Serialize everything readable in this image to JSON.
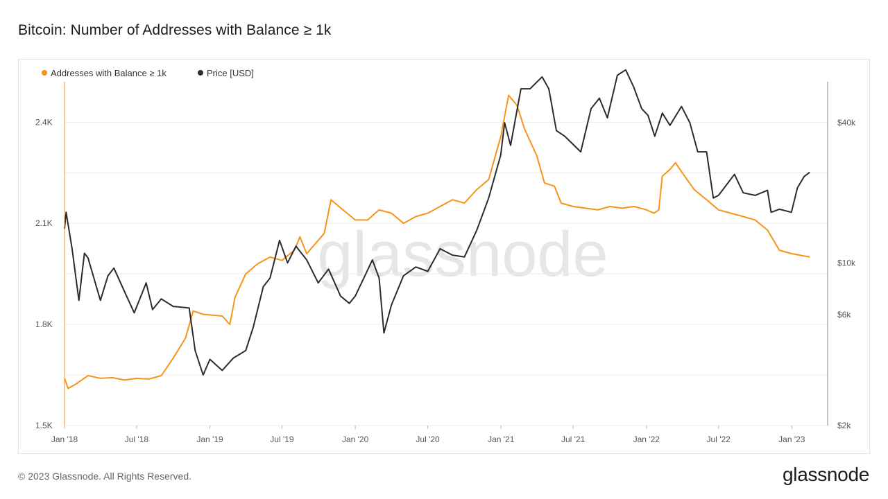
{
  "title": "Bitcoin: Number of Addresses with Balance ≥ 1k",
  "footer": {
    "copyright": "© 2023 Glassnode. All Rights Reserved.",
    "logo": "glassnode"
  },
  "watermark": "glassnode",
  "colors": {
    "addresses": "#f7931a",
    "price": "#2b2b2b",
    "grid": "#ececec"
  },
  "chart_data": {
    "type": "line",
    "title": "Bitcoin: Number of Addresses with Balance ≥ 1k",
    "grid": true,
    "legend_position": "top-left",
    "x_ticks": [
      "Jan '18",
      "Jul '18",
      "Jan '19",
      "Jul '19",
      "Jan '20",
      "Jul '20",
      "Jan '21",
      "Jul '21",
      "Jan '22",
      "Jul '22",
      "Jan '23"
    ],
    "y_left": {
      "ticks": [
        "1.5K",
        "1.8K",
        "2.1K",
        "2.4K"
      ],
      "range": [
        1500,
        2520
      ]
    },
    "y_right": {
      "scale": "log",
      "ticks": [
        "$2k",
        "$6k",
        "$10k",
        "$40k"
      ],
      "range": [
        2000,
        60000
      ]
    },
    "series": [
      {
        "name": "Addresses with Balance ≥ 1k",
        "axis": "left",
        "points": [
          [
            "2018-01-01",
            1640
          ],
          [
            "2018-01-10",
            1610
          ],
          [
            "2018-02-01",
            1625
          ],
          [
            "2018-03-01",
            1648
          ],
          [
            "2018-04-01",
            1640
          ],
          [
            "2018-05-01",
            1642
          ],
          [
            "2018-06-01",
            1635
          ],
          [
            "2018-07-01",
            1640
          ],
          [
            "2018-08-01",
            1638
          ],
          [
            "2018-09-01",
            1648
          ],
          [
            "2018-10-01",
            1700
          ],
          [
            "2018-11-01",
            1760
          ],
          [
            "2018-11-20",
            1840
          ],
          [
            "2018-12-15",
            1830
          ],
          [
            "2019-02-01",
            1825
          ],
          [
            "2019-02-20",
            1800
          ],
          [
            "2019-03-05",
            1880
          ],
          [
            "2019-04-01",
            1950
          ],
          [
            "2019-05-01",
            1980
          ],
          [
            "2019-06-01",
            2000
          ],
          [
            "2019-07-01",
            1990
          ],
          [
            "2019-08-01",
            2020
          ],
          [
            "2019-08-15",
            2060
          ],
          [
            "2019-09-01",
            2010
          ],
          [
            "2019-10-15",
            2070
          ],
          [
            "2019-11-01",
            2170
          ],
          [
            "2019-12-01",
            2140
          ],
          [
            "2020-01-01",
            2110
          ],
          [
            "2020-02-01",
            2110
          ],
          [
            "2020-03-01",
            2140
          ],
          [
            "2020-04-01",
            2130
          ],
          [
            "2020-05-01",
            2100
          ],
          [
            "2020-06-01",
            2120
          ],
          [
            "2020-07-01",
            2130
          ],
          [
            "2020-08-01",
            2150
          ],
          [
            "2020-09-01",
            2170
          ],
          [
            "2020-10-01",
            2160
          ],
          [
            "2020-11-01",
            2200
          ],
          [
            "2020-12-01",
            2230
          ],
          [
            "2021-01-01",
            2360
          ],
          [
            "2021-01-20",
            2480
          ],
          [
            "2021-02-10",
            2450
          ],
          [
            "2021-03-01",
            2380
          ],
          [
            "2021-04-01",
            2300
          ],
          [
            "2021-04-20",
            2220
          ],
          [
            "2021-05-15",
            2210
          ],
          [
            "2021-06-01",
            2160
          ],
          [
            "2021-07-01",
            2150
          ],
          [
            "2021-08-01",
            2145
          ],
          [
            "2021-09-01",
            2140
          ],
          [
            "2021-10-01",
            2150
          ],
          [
            "2021-11-01",
            2145
          ],
          [
            "2021-12-01",
            2150
          ],
          [
            "2022-01-01",
            2140
          ],
          [
            "2022-01-20",
            2130
          ],
          [
            "2022-02-01",
            2140
          ],
          [
            "2022-02-10",
            2240
          ],
          [
            "2022-03-01",
            2260
          ],
          [
            "2022-03-15",
            2280
          ],
          [
            "2022-04-01",
            2250
          ],
          [
            "2022-05-01",
            2200
          ],
          [
            "2022-06-01",
            2170
          ],
          [
            "2022-07-01",
            2140
          ],
          [
            "2022-08-01",
            2130
          ],
          [
            "2022-09-01",
            2120
          ],
          [
            "2022-10-01",
            2110
          ],
          [
            "2022-11-01",
            2080
          ],
          [
            "2022-12-01",
            2020
          ],
          [
            "2023-01-01",
            2010
          ],
          [
            "2023-02-15",
            2000
          ]
        ]
      },
      {
        "name": "Price [USD]",
        "axis": "right",
        "points": [
          [
            "2018-01-01",
            14000
          ],
          [
            "2018-01-05",
            16500
          ],
          [
            "2018-01-20",
            11500
          ],
          [
            "2018-02-06",
            6900
          ],
          [
            "2018-02-20",
            11000
          ],
          [
            "2018-03-01",
            10500
          ],
          [
            "2018-04-01",
            6900
          ],
          [
            "2018-04-20",
            8800
          ],
          [
            "2018-05-05",
            9500
          ],
          [
            "2018-06-01",
            7500
          ],
          [
            "2018-06-25",
            6100
          ],
          [
            "2018-07-25",
            8200
          ],
          [
            "2018-08-10",
            6300
          ],
          [
            "2018-09-01",
            7000
          ],
          [
            "2018-10-01",
            6500
          ],
          [
            "2018-11-10",
            6400
          ],
          [
            "2018-11-25",
            4200
          ],
          [
            "2018-12-15",
            3300
          ],
          [
            "2019-01-01",
            3850
          ],
          [
            "2019-02-01",
            3450
          ],
          [
            "2019-03-01",
            3900
          ],
          [
            "2019-04-01",
            4200
          ],
          [
            "2019-04-20",
            5300
          ],
          [
            "2019-05-15",
            7900
          ],
          [
            "2019-06-01",
            8600
          ],
          [
            "2019-06-25",
            12500
          ],
          [
            "2019-07-15",
            10000
          ],
          [
            "2019-08-05",
            11800
          ],
          [
            "2019-09-01",
            10300
          ],
          [
            "2019-09-30",
            8200
          ],
          [
            "2019-10-26",
            9400
          ],
          [
            "2019-11-25",
            7200
          ],
          [
            "2019-12-17",
            6700
          ],
          [
            "2020-01-01",
            7200
          ],
          [
            "2020-02-13",
            10300
          ],
          [
            "2020-03-01",
            8600
          ],
          [
            "2020-03-13",
            5000
          ],
          [
            "2020-04-01",
            6600
          ],
          [
            "2020-05-01",
            8800
          ],
          [
            "2020-06-01",
            9600
          ],
          [
            "2020-07-01",
            9200
          ],
          [
            "2020-08-01",
            11500
          ],
          [
            "2020-09-01",
            10800
          ],
          [
            "2020-10-01",
            10600
          ],
          [
            "2020-11-01",
            13800
          ],
          [
            "2020-12-01",
            19000
          ],
          [
            "2020-12-31",
            29000
          ],
          [
            "2021-01-10",
            40000
          ],
          [
            "2021-01-25",
            32000
          ],
          [
            "2021-02-20",
            56000
          ],
          [
            "2021-03-15",
            56000
          ],
          [
            "2021-04-14",
            63000
          ],
          [
            "2021-05-01",
            56000
          ],
          [
            "2021-05-20",
            37000
          ],
          [
            "2021-06-10",
            35000
          ],
          [
            "2021-07-20",
            30000
          ],
          [
            "2021-08-15",
            46000
          ],
          [
            "2021-09-05",
            51000
          ],
          [
            "2021-09-25",
            42000
          ],
          [
            "2021-10-20",
            64000
          ],
          [
            "2021-11-10",
            67500
          ],
          [
            "2021-11-30",
            57000
          ],
          [
            "2021-12-20",
            46000
          ],
          [
            "2022-01-05",
            43000
          ],
          [
            "2022-01-22",
            35000
          ],
          [
            "2022-02-10",
            44000
          ],
          [
            "2022-03-01",
            39000
          ],
          [
            "2022-03-30",
            47000
          ],
          [
            "2022-04-20",
            40000
          ],
          [
            "2022-05-10",
            30000
          ],
          [
            "2022-06-01",
            30000
          ],
          [
            "2022-06-18",
            19000
          ],
          [
            "2022-07-01",
            19500
          ],
          [
            "2022-08-10",
            24000
          ],
          [
            "2022-09-01",
            20000
          ],
          [
            "2022-10-01",
            19500
          ],
          [
            "2022-11-01",
            20500
          ],
          [
            "2022-11-10",
            16500
          ],
          [
            "2022-12-01",
            17000
          ],
          [
            "2022-12-31",
            16500
          ],
          [
            "2023-01-15",
            21000
          ],
          [
            "2023-02-01",
            23500
          ],
          [
            "2023-02-15",
            24500
          ]
        ]
      }
    ]
  }
}
